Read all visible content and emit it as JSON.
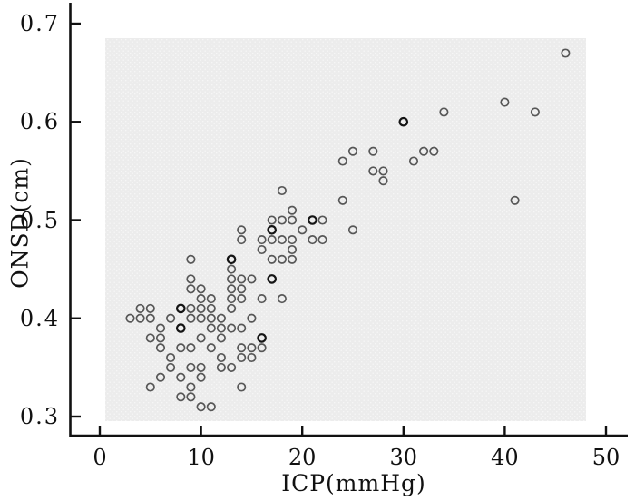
{
  "figure": {
    "background": "#ffffff",
    "plot_background": "#ececec",
    "axis_color": "#111111",
    "marker_color": "#3c3c3c"
  },
  "chart_data": {
    "type": "scatter",
    "title": "",
    "xlabel": "ICP(mmHg)",
    "ylabel": "ONSD(cm)",
    "xlim": [
      0,
      50
    ],
    "ylim": [
      0.3,
      0.7
    ],
    "x_ticks": [
      0,
      10,
      20,
      30,
      40,
      50
    ],
    "y_ticks": [
      0.7,
      0.6,
      0.5,
      0.4,
      0.3
    ],
    "grid": false,
    "legend": null,
    "marker": "open-circle",
    "points": [
      [
        46,
        0.67
      ],
      [
        40,
        0.62
      ],
      [
        43,
        0.61
      ],
      [
        34,
        0.61
      ],
      [
        30,
        0.6
      ],
      [
        25,
        0.57
      ],
      [
        27,
        0.57
      ],
      [
        32,
        0.57
      ],
      [
        33,
        0.57
      ],
      [
        24,
        0.56
      ],
      [
        31,
        0.56
      ],
      [
        27,
        0.55
      ],
      [
        28,
        0.55
      ],
      [
        28,
        0.54
      ],
      [
        18,
        0.53
      ],
      [
        24,
        0.52
      ],
      [
        41,
        0.52
      ],
      [
        19,
        0.51
      ],
      [
        17,
        0.5
      ],
      [
        18,
        0.5
      ],
      [
        19,
        0.5
      ],
      [
        21,
        0.5
      ],
      [
        22,
        0.5
      ],
      [
        14,
        0.49
      ],
      [
        17,
        0.49
      ],
      [
        20,
        0.49
      ],
      [
        25,
        0.49
      ],
      [
        14,
        0.48
      ],
      [
        16,
        0.48
      ],
      [
        17,
        0.48
      ],
      [
        18,
        0.48
      ],
      [
        19,
        0.48
      ],
      [
        21,
        0.48
      ],
      [
        22,
        0.48
      ],
      [
        16,
        0.47
      ],
      [
        19,
        0.47
      ],
      [
        9,
        0.46
      ],
      [
        13,
        0.46
      ],
      [
        17,
        0.46
      ],
      [
        18,
        0.46
      ],
      [
        19,
        0.46
      ],
      [
        13,
        0.45
      ],
      [
        9,
        0.44
      ],
      [
        13,
        0.44
      ],
      [
        14,
        0.44
      ],
      [
        15,
        0.44
      ],
      [
        17,
        0.44
      ],
      [
        9,
        0.43
      ],
      [
        10,
        0.43
      ],
      [
        13,
        0.43
      ],
      [
        14,
        0.43
      ],
      [
        10,
        0.42
      ],
      [
        11,
        0.42
      ],
      [
        13,
        0.42
      ],
      [
        14,
        0.42
      ],
      [
        16,
        0.42
      ],
      [
        18,
        0.42
      ],
      [
        4,
        0.41
      ],
      [
        5,
        0.41
      ],
      [
        8,
        0.41
      ],
      [
        9,
        0.41
      ],
      [
        10,
        0.41
      ],
      [
        11,
        0.41
      ],
      [
        13,
        0.41
      ],
      [
        3,
        0.4
      ],
      [
        4,
        0.4
      ],
      [
        5,
        0.4
      ],
      [
        7,
        0.4
      ],
      [
        9,
        0.4
      ],
      [
        10,
        0.4
      ],
      [
        11,
        0.4
      ],
      [
        12,
        0.4
      ],
      [
        15,
        0.4
      ],
      [
        6,
        0.39
      ],
      [
        8,
        0.39
      ],
      [
        11,
        0.39
      ],
      [
        12,
        0.39
      ],
      [
        13,
        0.39
      ],
      [
        14,
        0.39
      ],
      [
        5,
        0.38
      ],
      [
        6,
        0.38
      ],
      [
        10,
        0.38
      ],
      [
        12,
        0.38
      ],
      [
        16,
        0.38
      ],
      [
        6,
        0.37
      ],
      [
        8,
        0.37
      ],
      [
        9,
        0.37
      ],
      [
        11,
        0.37
      ],
      [
        14,
        0.37
      ],
      [
        15,
        0.37
      ],
      [
        16,
        0.37
      ],
      [
        7,
        0.36
      ],
      [
        12,
        0.36
      ],
      [
        14,
        0.36
      ],
      [
        15,
        0.36
      ],
      [
        7,
        0.35
      ],
      [
        9,
        0.35
      ],
      [
        10,
        0.35
      ],
      [
        12,
        0.35
      ],
      [
        13,
        0.35
      ],
      [
        6,
        0.34
      ],
      [
        8,
        0.34
      ],
      [
        10,
        0.34
      ],
      [
        5,
        0.33
      ],
      [
        9,
        0.33
      ],
      [
        14,
        0.33
      ],
      [
        8,
        0.32
      ],
      [
        9,
        0.32
      ],
      [
        10,
        0.31
      ],
      [
        11,
        0.31
      ]
    ],
    "emphasized_points": [
      [
        8,
        0.41
      ],
      [
        8,
        0.39
      ],
      [
        17,
        0.44
      ],
      [
        16,
        0.38
      ],
      [
        30,
        0.6
      ],
      [
        17,
        0.49
      ],
      [
        21,
        0.5
      ],
      [
        13,
        0.46
      ]
    ]
  }
}
